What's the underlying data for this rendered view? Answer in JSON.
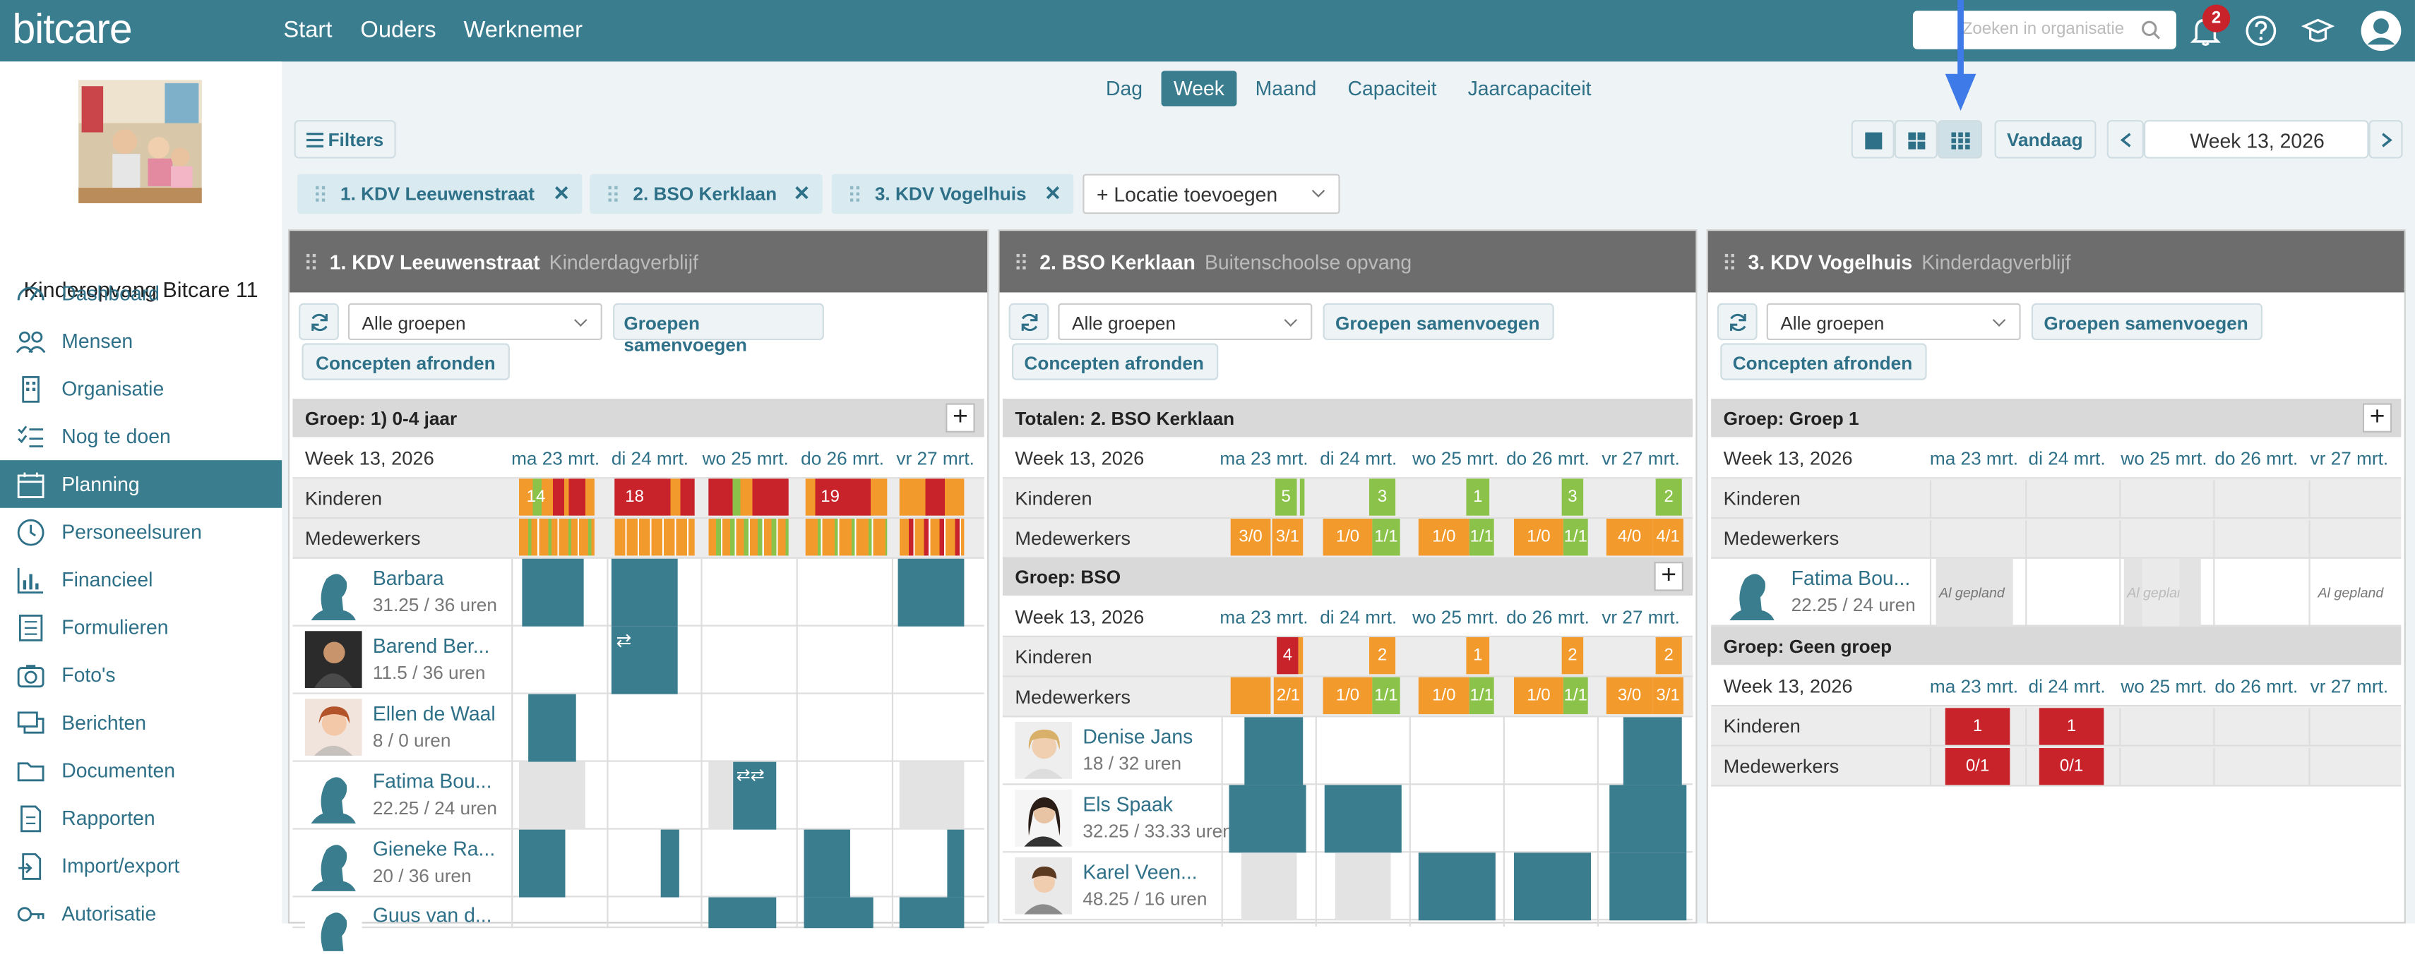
{
  "app": {
    "logo": "bitcare",
    "nav": [
      "Start",
      "Ouders",
      "Werknemer"
    ],
    "search_placeholder": "Zoeken in organisatie",
    "notifications": "2"
  },
  "org_name": "Kinderopvang Bitcare 11",
  "menu": [
    "Dashboard",
    "Mensen",
    "Organisatie",
    "Nog te doen",
    "Planning",
    "Personeelsuren",
    "Financieel",
    "Formulieren",
    "Foto's",
    "Berichten",
    "Documenten",
    "Rapporten",
    "Import/export",
    "Autorisatie"
  ],
  "views": [
    "Dag",
    "Week",
    "Maand",
    "Capaciteit",
    "Jaarcapaciteit"
  ],
  "filters_label": "Filters",
  "today_label": "Vandaag",
  "week_label": "Week 13, 2026",
  "locations": [
    "1. KDV Leeuwenstraat",
    "2. BSO Kerklaan",
    "3. KDV Vogelhuis"
  ],
  "add_location": "+ Locatie toevoegen",
  "days": [
    "ma 23 mrt.",
    "di 24 mrt.",
    "wo 25 mrt.",
    "do 26 mrt.",
    "vr 27 mrt."
  ],
  "labels": {
    "all_groups": "Alle groepen",
    "merge": "Groepen samenvoegen",
    "finalize": "Concepten afronden",
    "kinderen": "Kinderen",
    "medewerkers": "Medewerkers",
    "planned": "Al gepland"
  },
  "panels": [
    {
      "title": "1. KDV Leeuwenstraat",
      "subtitle": "Kinderdagverblijf",
      "group": "Groep: 1) 0-4 jaar",
      "kids": [
        "14",
        "18",
        "",
        "19",
        ""
      ],
      "employees": [
        {
          "name": "Barbara",
          "hours": "31.25 / 36 uren"
        },
        {
          "name": "Barend Ber...",
          "hours": "11.5 / 36 uren"
        },
        {
          "name": "Ellen de Waal",
          "hours": "8 / 0 uren"
        },
        {
          "name": "Fatima Bou...",
          "hours": "22.25 / 24 uren"
        },
        {
          "name": "Gieneke Ra...",
          "hours": "20 / 36 uren"
        },
        {
          "name": "Guus van d...",
          "hours": ""
        }
      ]
    },
    {
      "title": "2. BSO Kerklaan",
      "subtitle": "Buitenschoolse opvang",
      "totals": "Totalen: 2. BSO Kerklaan",
      "group": "Groep: BSO",
      "tot_kids": [
        "5",
        "3",
        "1",
        "3",
        "2"
      ],
      "tot_staff": [
        [
          "3/0",
          "3/1"
        ],
        [
          "1/0",
          "1/1"
        ],
        [
          "1/0",
          "1/1"
        ],
        [
          "1/0",
          "1/1"
        ],
        [
          "4/0",
          "4/1"
        ]
      ],
      "g_kids": [
        "4",
        "2",
        "1",
        "2",
        "2"
      ],
      "g_staff": [
        [
          "2/1"
        ],
        [
          "1/0",
          "1/1"
        ],
        [
          "1/0",
          "1/1"
        ],
        [
          "1/0",
          "1/1"
        ],
        [
          "3/0",
          "3/1"
        ]
      ],
      "employees": [
        {
          "name": "Denise Jans",
          "hours": "18 / 32 uren"
        },
        {
          "name": "Els Spaak",
          "hours": "32.25 / 33.33 uren"
        },
        {
          "name": "Karel Veen...",
          "hours": "48.25 / 16 uren"
        }
      ]
    },
    {
      "title": "3. KDV Vogelhuis",
      "subtitle": "Kinderdagverblijf",
      "group": "Groep: Groep 1",
      "group2": "Groep: Geen groep",
      "employees": [
        {
          "name": "Fatima Bou...",
          "hours": "22.25 / 24 uren"
        }
      ],
      "g2_kids": [
        "1",
        "1"
      ],
      "g2_staff": [
        "0/1",
        "0/1"
      ]
    }
  ]
}
